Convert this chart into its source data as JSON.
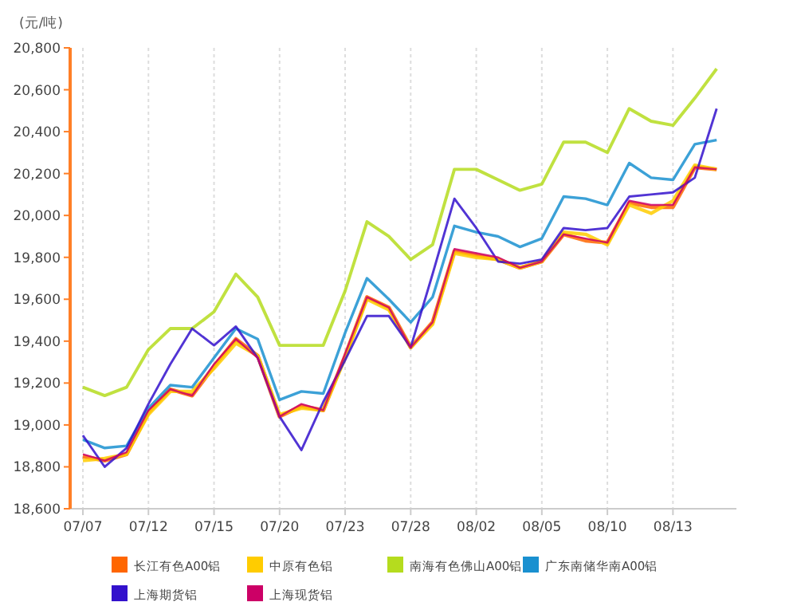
{
  "chart_data": {
    "type": "line",
    "ylabel": "(元/吨)",
    "categories": [
      "07/07",
      null,
      null,
      "07/12",
      null,
      null,
      "07/15",
      null,
      null,
      "07/20",
      null,
      null,
      "07/23",
      null,
      null,
      "07/28",
      null,
      null,
      "08/02",
      null,
      null,
      "08/05",
      null,
      null,
      "08/10",
      null,
      null,
      "08/13",
      null,
      null
    ],
    "series": [
      {
        "name": "长江有色A00铝",
        "color": "#ff6600",
        "values": [
          18850,
          18830,
          18860,
          19060,
          19170,
          19140,
          19280,
          19410,
          19330,
          19040,
          19090,
          19070,
          19330,
          19610,
          19560,
          19370,
          19490,
          19830,
          19810,
          19790,
          19750,
          19780,
          19910,
          19880,
          19870,
          20060,
          20040,
          20040,
          20230,
          20220
        ]
      },
      {
        "name": "中原有色铝",
        "color": "#ffcc00",
        "values": [
          18830,
          18840,
          18860,
          19050,
          19160,
          19160,
          19270,
          19390,
          19330,
          19050,
          19080,
          19070,
          19320,
          19600,
          19550,
          19370,
          19480,
          19820,
          19800,
          19790,
          19750,
          19780,
          19920,
          19910,
          19860,
          20050,
          20010,
          20070,
          20240,
          20220
        ]
      },
      {
        "name": "南海有色佛山A00铝",
        "color": "#b5dc1e",
        "values": [
          19180,
          19140,
          19180,
          19360,
          19460,
          19460,
          19540,
          19720,
          19610,
          19380,
          19380,
          19380,
          19640,
          19970,
          19900,
          19790,
          19860,
          20220,
          20220,
          20170,
          20120,
          20150,
          20350,
          20350,
          20300,
          20510,
          20450,
          20430,
          20560,
          20700
        ]
      },
      {
        "name": "广东南储华南A00铝",
        "color": "#1a90d0",
        "values": [
          18930,
          18890,
          18900,
          19080,
          19190,
          19180,
          19320,
          19460,
          19410,
          19120,
          19160,
          19150,
          19440,
          19700,
          19600,
          19490,
          19610,
          19950,
          19920,
          19900,
          19850,
          19890,
          20090,
          20080,
          20050,
          20250,
          20180,
          20170,
          20340,
          20360
        ]
      },
      {
        "name": "上海期货铝",
        "color": "#3311cc",
        "values": [
          18950,
          18800,
          18890,
          19100,
          19290,
          19460,
          19380,
          19470,
          19320,
          19040,
          18880,
          19110,
          19310,
          19520,
          19520,
          19370,
          19720,
          20080,
          19940,
          19780,
          19770,
          19790,
          19940,
          19930,
          19940,
          20090,
          20100,
          20110,
          20180,
          20510
        ]
      },
      {
        "name": "上海现货铝",
        "color": "#cc0066",
        "values": [
          18860,
          18830,
          18870,
          19070,
          19170,
          19140,
          19290,
          19410,
          19320,
          19040,
          19100,
          19070,
          19340,
          19610,
          19560,
          19370,
          19490,
          19840,
          19820,
          19800,
          19750,
          19780,
          19910,
          19890,
          19870,
          20070,
          20050,
          20050,
          20230,
          20220
        ]
      }
    ],
    "ylim": [
      18600,
      20800
    ],
    "yticks": [
      {
        "value": 18600,
        "label": "18,600"
      },
      {
        "value": 18800,
        "label": "18,800"
      },
      {
        "value": 19000,
        "label": "19,000"
      },
      {
        "value": 19200,
        "label": "19,200"
      },
      {
        "value": 19400,
        "label": "19,400"
      },
      {
        "value": 19600,
        "label": "19,600"
      },
      {
        "value": 19800,
        "label": "19,800"
      },
      {
        "value": 20000,
        "label": "20,000"
      },
      {
        "value": 20200,
        "label": "20,200"
      },
      {
        "value": 20400,
        "label": "20,400"
      },
      {
        "value": 20600,
        "label": "20,600"
      },
      {
        "value": 20800,
        "label": "20,800"
      }
    ],
    "grid": "x",
    "legend": "bottom",
    "marker": "none",
    "line_style": "solid"
  }
}
